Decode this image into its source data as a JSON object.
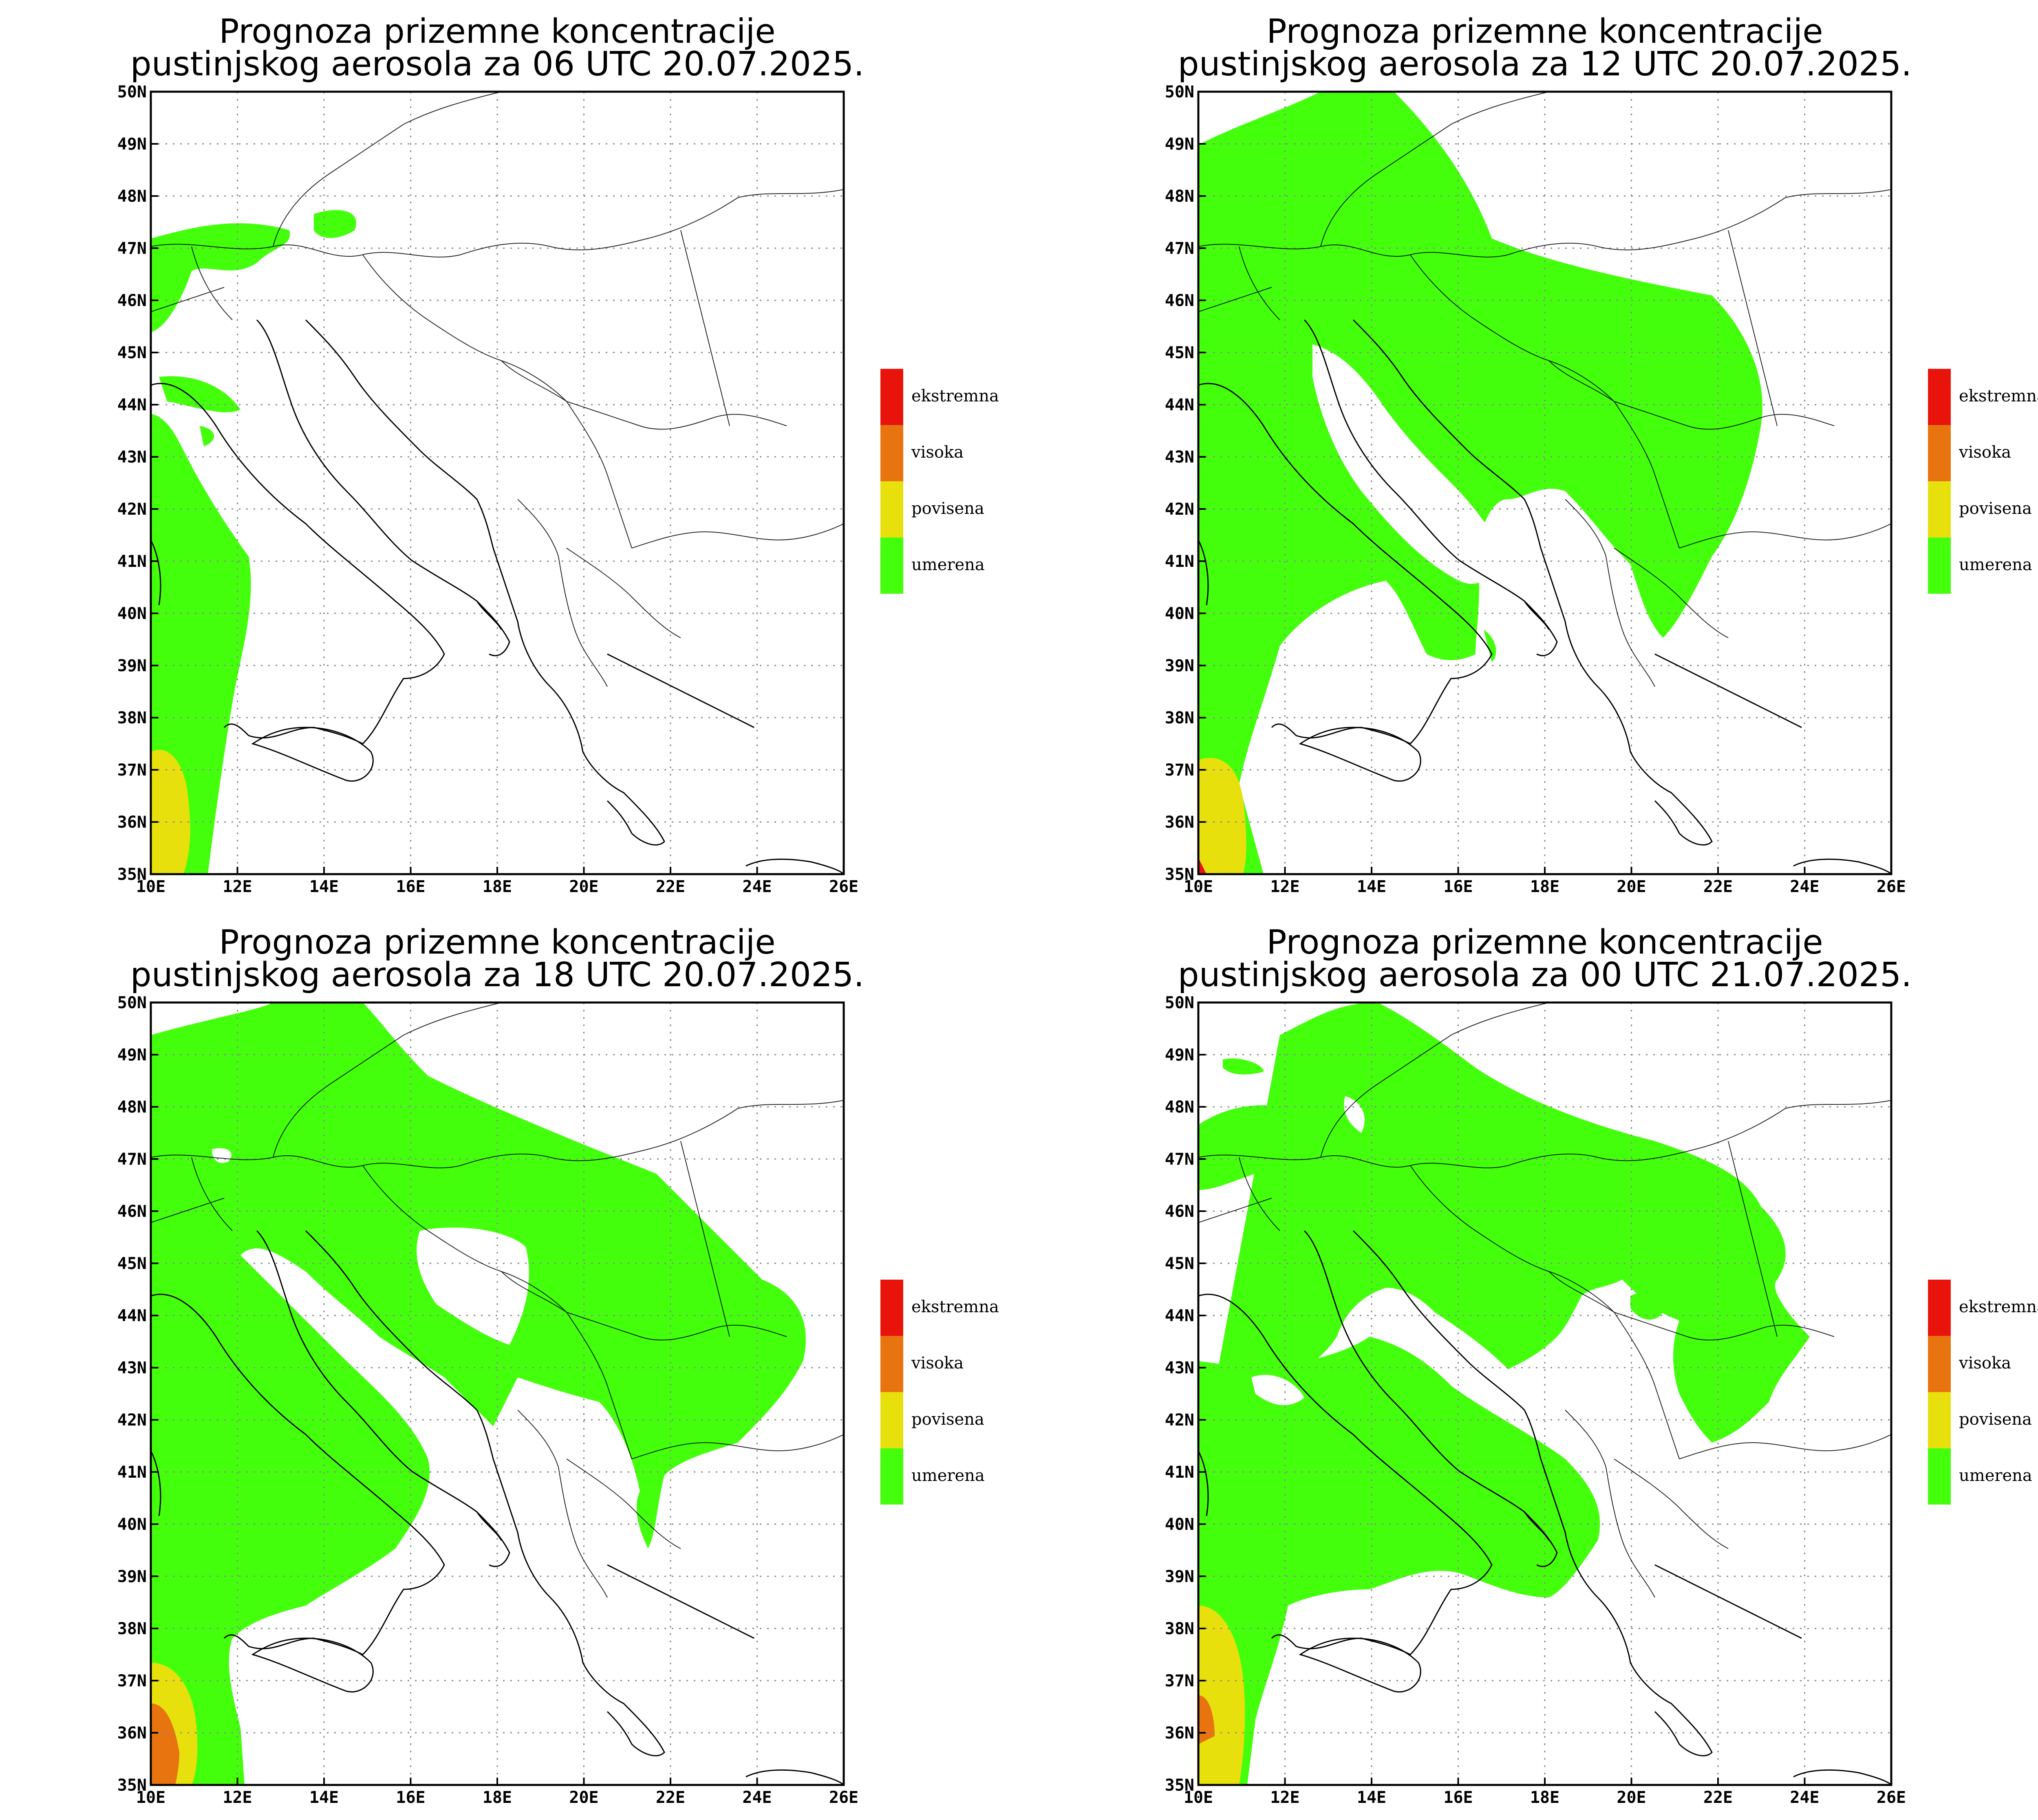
{
  "panels": [
    {
      "title_line1": "Prognoza prizemne koncentracije",
      "title_line2": "pustinjskog aerosola za 06 UTC 20.07.2025."
    },
    {
      "title_line1": "Prognoza prizemne koncentracije",
      "title_line2": "pustinjskog aerosola za 12 UTC 20.07.2025."
    },
    {
      "title_line1": "Prognoza prizemne koncentracije",
      "title_line2": "pustinjskog aerosola za 18 UTC 20.07.2025."
    },
    {
      "title_line1": "Prognoza prizemne koncentracije",
      "title_line2": "pustinjskog aerosola za 00 UTC 21.07.2025."
    }
  ],
  "axes": {
    "lon_labels": [
      "10E",
      "12E",
      "14E",
      "16E",
      "18E",
      "20E",
      "22E",
      "24E",
      "26E"
    ],
    "lat_labels": [
      "50N",
      "49N",
      "48N",
      "47N",
      "46N",
      "45N",
      "44N",
      "43N",
      "42N",
      "41N",
      "40N",
      "39N",
      "38N",
      "37N",
      "36N",
      "35N"
    ]
  },
  "legend": [
    {
      "label": "ekstremna",
      "color": "#e8140c"
    },
    {
      "label": "visoka",
      "color": "#e87410"
    },
    {
      "label": "povisena",
      "color": "#e8e00c"
    },
    {
      "label": "umerena",
      "color": "#44ff0c"
    }
  ]
}
